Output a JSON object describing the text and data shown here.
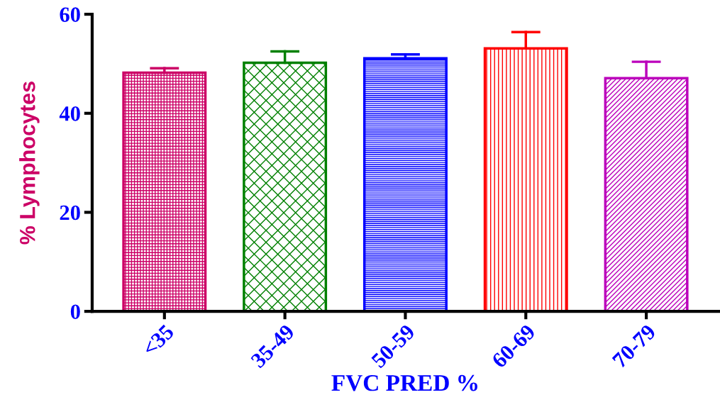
{
  "chart_data": {
    "type": "bar",
    "xlabel": "FVC PRED %",
    "ylabel": "% Lymphocytes",
    "categories": [
      "<35",
      "35-49",
      "50-59",
      "60-69",
      "70-79"
    ],
    "values": [
      48.2,
      50.2,
      51.1,
      53.1,
      47.1
    ],
    "errors": [
      [
        48.2,
        49.1
      ],
      [
        50.2,
        52.5
      ],
      [
        51.1,
        51.9
      ],
      [
        53.1,
        56.4
      ],
      [
        47.1,
        50.4
      ]
    ],
    "colors": [
      "#cc0066",
      "#008000",
      "#0000ff",
      "#ff0000",
      "#bb00bb"
    ],
    "ylim": [
      0,
      60
    ],
    "yticks": [
      0,
      20,
      40,
      60
    ],
    "grid": false,
    "legend": false
  }
}
